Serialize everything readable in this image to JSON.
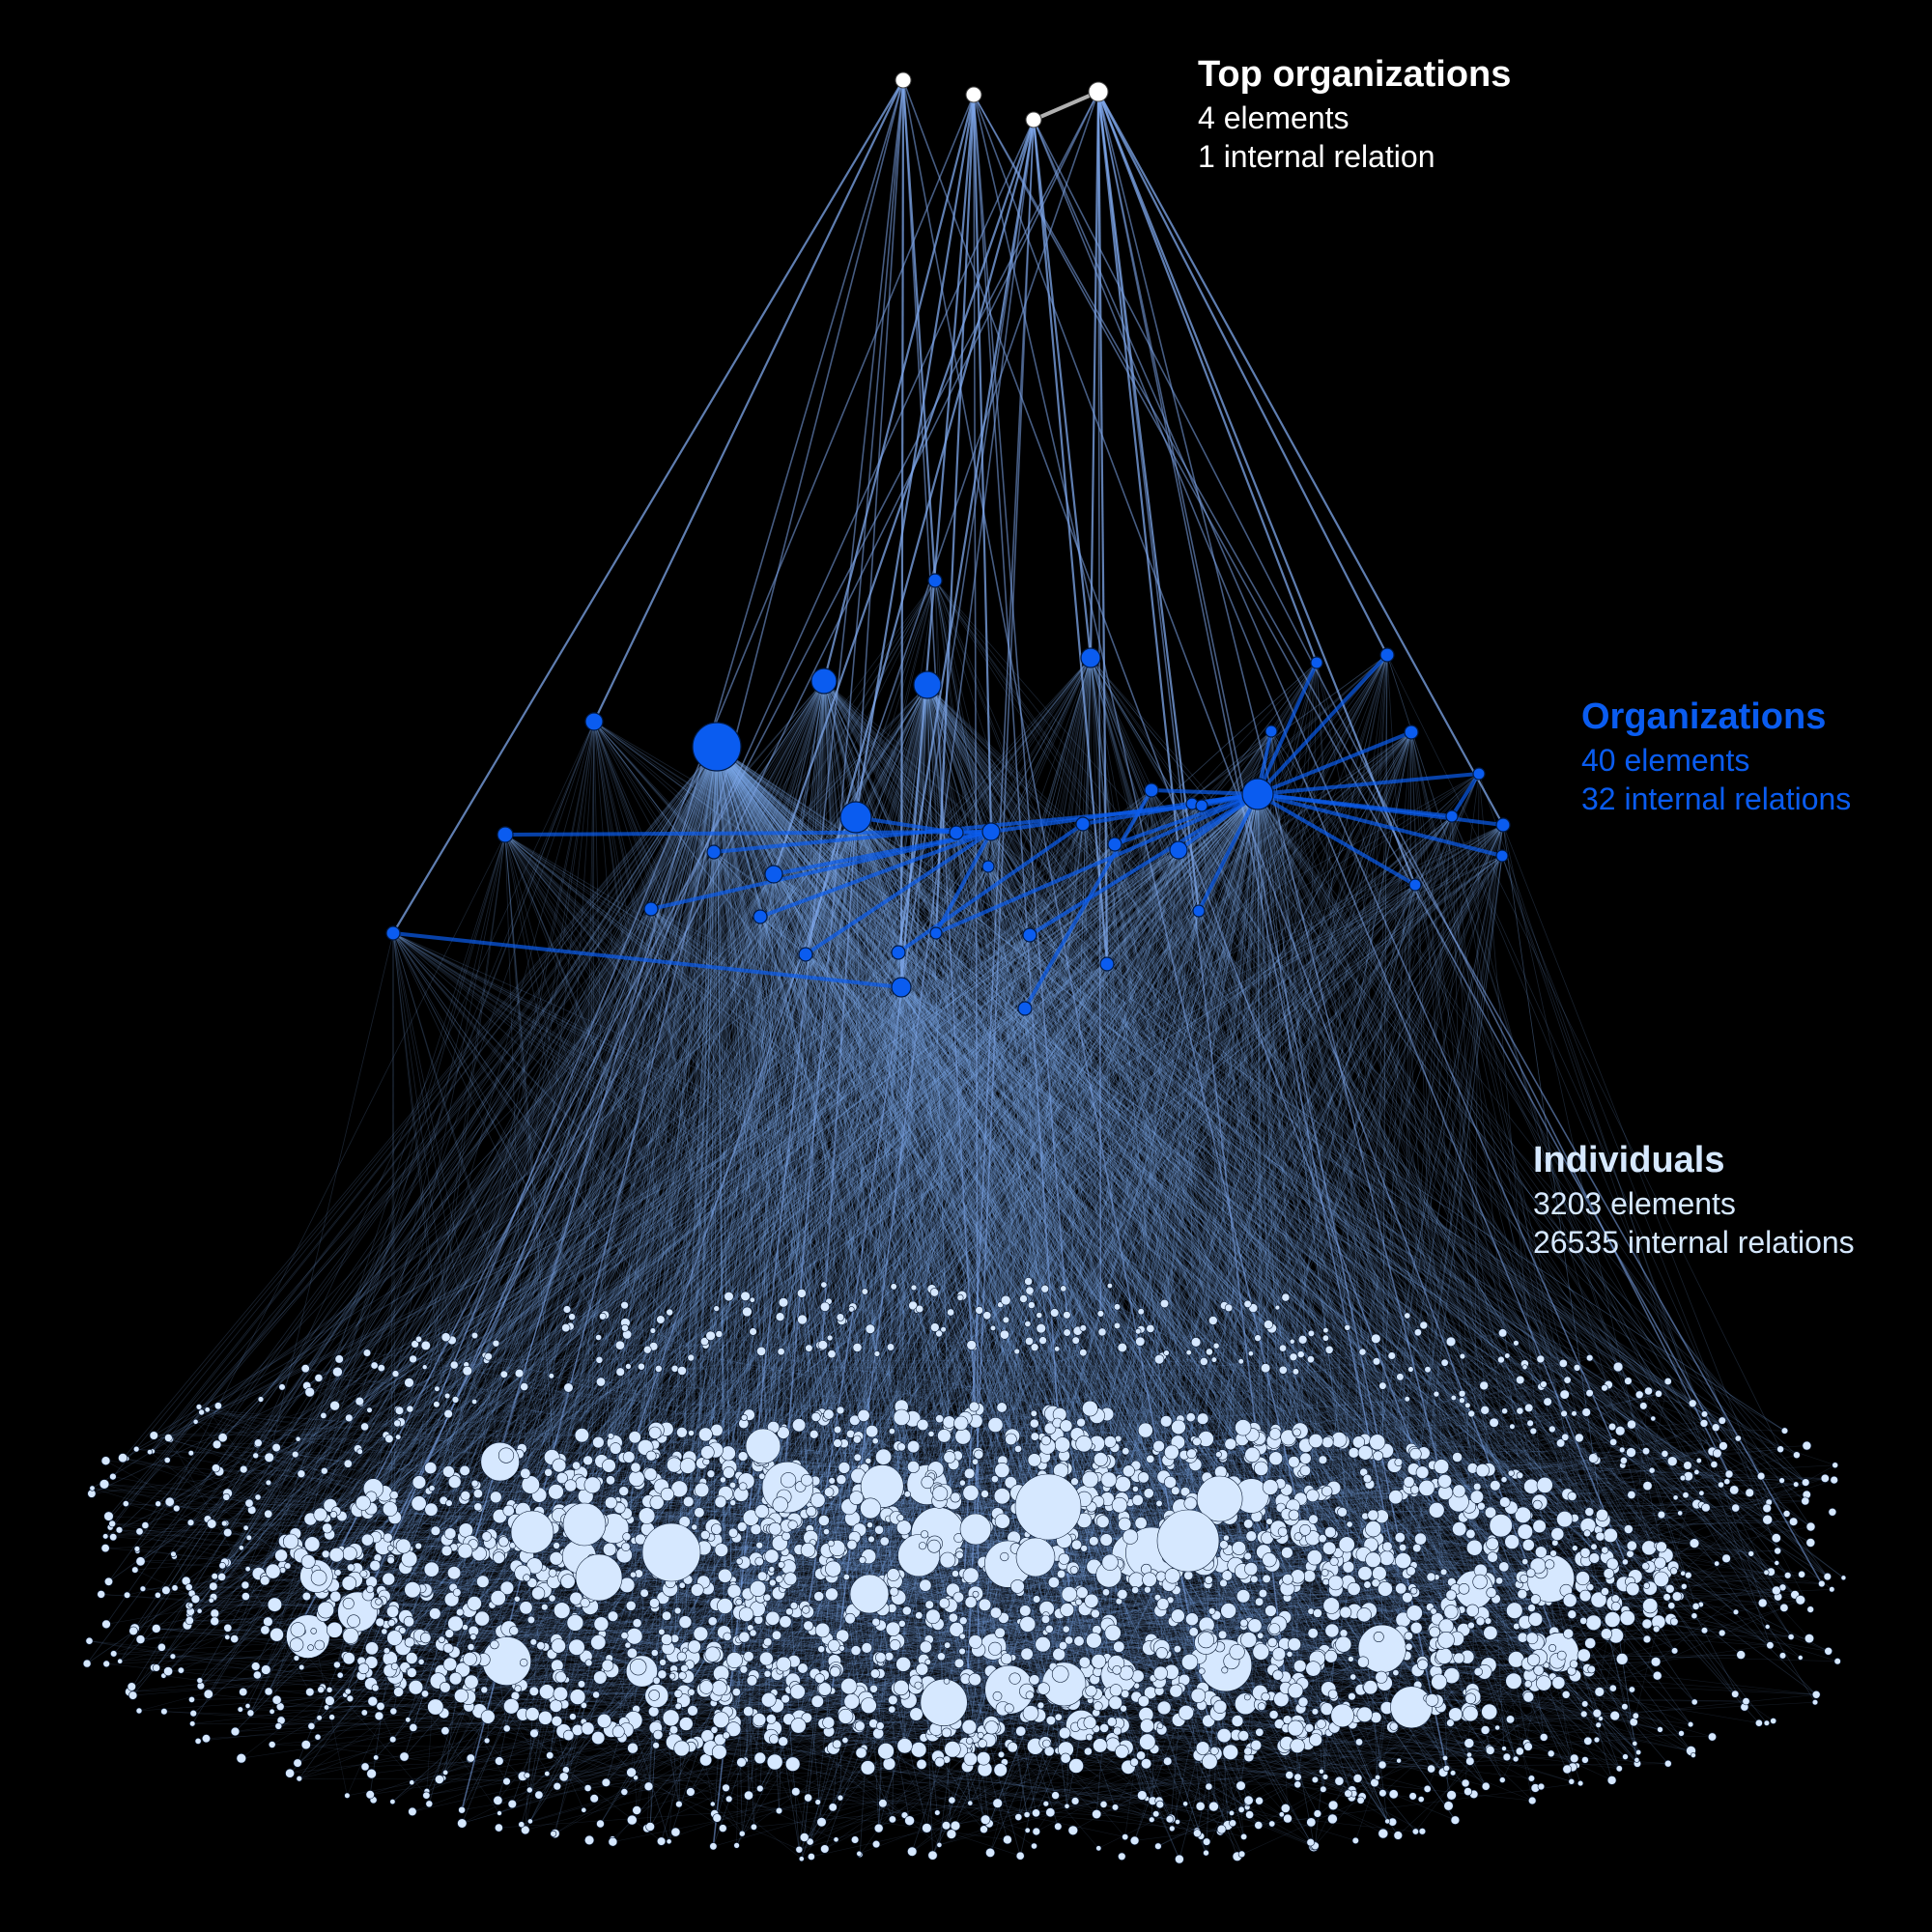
{
  "colors": {
    "background": "#000000",
    "top_layer": "#ffffff",
    "organizations_layer": "#0a5cf0",
    "individuals_layer": "#d6e8ff",
    "link": "#7fa8ec"
  },
  "layers": {
    "top": {
      "title": "Top organizations",
      "elements": "4 elements",
      "relations": "1 internal relation"
    },
    "organizations": {
      "title": "Organizations",
      "elements": "40 elements",
      "relations": "32 internal relations"
    },
    "individuals": {
      "title": "Individuals",
      "elements": "3203 elements",
      "relations": "26535 internal relations"
    }
  }
}
